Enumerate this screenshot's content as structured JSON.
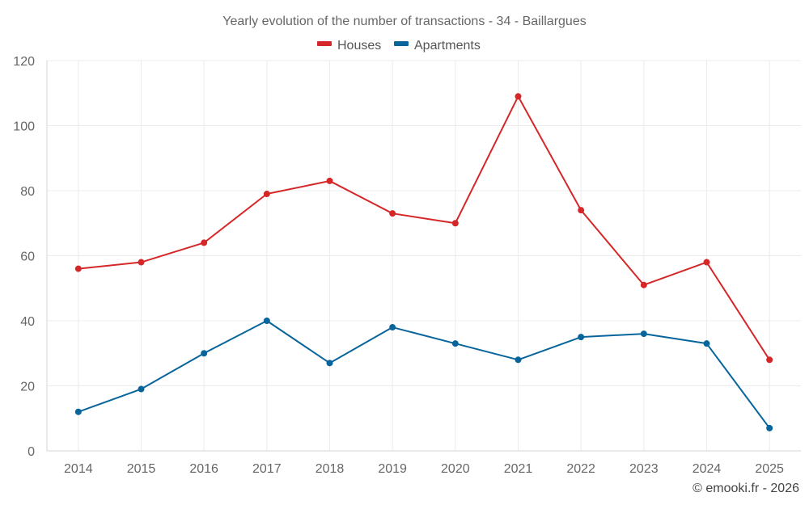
{
  "chart_data": {
    "type": "line",
    "title": "Yearly evolution of the number of transactions - 34 - Baillargues",
    "xlabel": "",
    "ylabel": "",
    "x": [
      "2014",
      "2015",
      "2016",
      "2017",
      "2018",
      "2019",
      "2020",
      "2021",
      "2022",
      "2023",
      "2024",
      "2025"
    ],
    "ylim": [
      0,
      120
    ],
    "yticks": [
      0,
      20,
      40,
      60,
      80,
      100,
      120
    ],
    "grid": true,
    "legend_position": "top-center",
    "series": [
      {
        "name": "Houses",
        "color": "#d62728",
        "values": [
          56,
          58,
          64,
          79,
          83,
          73,
          70,
          109,
          74,
          51,
          58,
          28
        ]
      },
      {
        "name": "Apartments",
        "color": "#08659c",
        "values": [
          12,
          19,
          30,
          40,
          27,
          38,
          33,
          28,
          35,
          36,
          33,
          7
        ]
      }
    ]
  },
  "credit": "© emooki.fr - 2026"
}
